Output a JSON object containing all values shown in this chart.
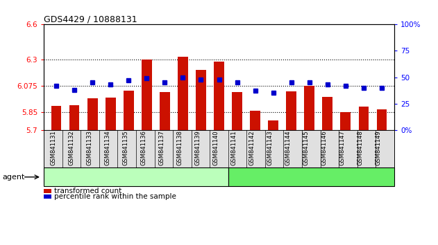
{
  "title": "GDS4429 / 10888131",
  "samples": [
    "GSM841131",
    "GSM841132",
    "GSM841133",
    "GSM841134",
    "GSM841135",
    "GSM841136",
    "GSM841137",
    "GSM841138",
    "GSM841139",
    "GSM841140",
    "GSM841141",
    "GSM841142",
    "GSM841143",
    "GSM841144",
    "GSM841145",
    "GSM841146",
    "GSM841147",
    "GSM841148",
    "GSM841149"
  ],
  "red_values": [
    5.905,
    5.91,
    5.97,
    5.975,
    6.035,
    6.3,
    6.025,
    6.325,
    6.21,
    6.285,
    6.025,
    5.865,
    5.78,
    6.03,
    6.075,
    5.98,
    5.85,
    5.9,
    5.875
  ],
  "blue_values": [
    42,
    38,
    45,
    43,
    47,
    49,
    45,
    50,
    48,
    48,
    45,
    37,
    35,
    45,
    45,
    43,
    42,
    40,
    40
  ],
  "group1_count": 10,
  "group1_color": "#bbffbb",
  "group2_color": "#66ee66",
  "bar_color": "#cc1100",
  "marker_color": "#0000cc",
  "y_min": 5.7,
  "y_max": 6.6,
  "y_ticks_left": [
    5.7,
    5.85,
    6.075,
    6.3,
    6.6
  ],
  "y_ticks_left_labels": [
    "5.7",
    "5.85",
    "6.075",
    "6.3",
    "6.6"
  ],
  "y_ticks_right_vals": [
    0,
    25,
    50,
    75,
    100
  ],
  "y_ticks_right_labels": [
    "0%",
    "25",
    "50",
    "75",
    "100%"
  ],
  "dotted_lines": [
    5.85,
    6.075,
    6.3
  ],
  "agent_label": "agent",
  "legend_red": "transformed count",
  "legend_blue": "percentile rank within the sample",
  "bar_width": 0.55
}
